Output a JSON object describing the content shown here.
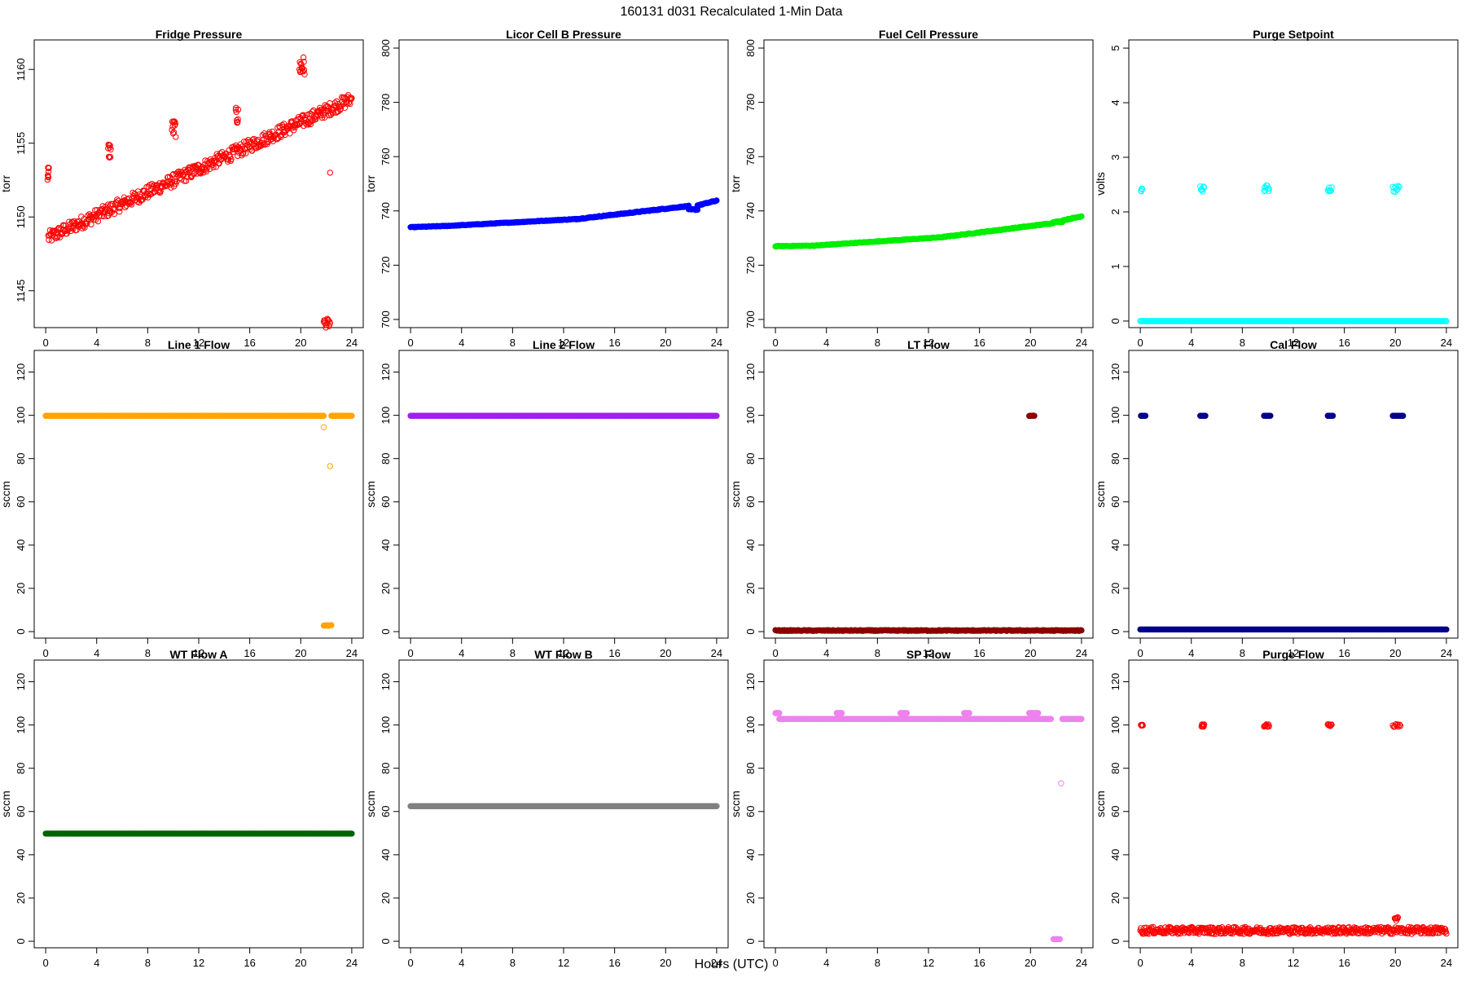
{
  "page_title": "160131   d031   Recalculated 1-Min Data",
  "xlabel": "Hours (UTC)",
  "chart_data": [
    {
      "type": "scatter",
      "title": "Fridge Pressure",
      "ylabel": "torr",
      "color": "#ff0000",
      "marker": "circle-open",
      "xlim": [
        0,
        24
      ],
      "ylim": [
        1142.5,
        1162
      ],
      "xticks": [
        0,
        4,
        8,
        12,
        16,
        20,
        24
      ],
      "yticks": [
        1145,
        1150,
        1155,
        1160
      ],
      "segments": [
        {
          "x": [
            0.2,
            24
          ],
          "y": [
            1148.6,
            1158
          ],
          "dense": true,
          "noise": 0.45
        },
        {
          "x": [
            0.15,
            0.25
          ],
          "y": [
            1153.0,
            1153.0
          ],
          "noise": 0.5,
          "n": 8
        },
        {
          "x": [
            4.9,
            5.1
          ],
          "y": [
            1154.5,
            1154.5
          ],
          "noise": 0.6,
          "n": 8
        },
        {
          "x": [
            9.9,
            10.2
          ],
          "y": [
            1156.0,
            1156.0
          ],
          "noise": 0.6,
          "n": 10
        },
        {
          "x": [
            14.9,
            15.1
          ],
          "y": [
            1156.8,
            1156.8
          ],
          "noise": 0.6,
          "n": 8
        },
        {
          "x": [
            19.9,
            20.3
          ],
          "y": [
            1160.2,
            1160.2
          ],
          "noise": 0.7,
          "n": 14
        },
        {
          "x": [
            21.8,
            22.3
          ],
          "y": [
            1142.8,
            1142.8
          ],
          "noise": 0.3,
          "n": 12
        }
      ],
      "points": [
        {
          "x": 22.3,
          "y": 1153.0
        }
      ]
    },
    {
      "type": "scatter",
      "title": "Licor Cell B Pressure",
      "ylabel": "torr",
      "color": "#0000ff",
      "marker": "circle-filled",
      "xlim": [
        0,
        24
      ],
      "ylim": [
        697,
        803
      ],
      "xticks": [
        0,
        4,
        8,
        12,
        16,
        20,
        24
      ],
      "yticks": [
        700,
        720,
        740,
        760,
        780,
        800
      ],
      "segments": [
        {
          "x": [
            0,
            3
          ],
          "y": [
            734,
            734.5
          ],
          "dense": true,
          "noise": 0.1
        },
        {
          "x": [
            3,
            13
          ],
          "y": [
            734.5,
            737
          ],
          "dense": true,
          "noise": 0.1
        },
        {
          "x": [
            13,
            21.8
          ],
          "y": [
            737,
            741.8
          ],
          "dense": true,
          "noise": 0.15
        },
        {
          "x": [
            21.8,
            22.5
          ],
          "y": [
            740.5,
            740.5
          ],
          "dense": true,
          "noise": 0.2
        },
        {
          "x": [
            22.5,
            24
          ],
          "y": [
            742,
            743.8
          ],
          "dense": true,
          "noise": 0.15
        }
      ]
    },
    {
      "type": "scatter",
      "title": "Fuel Cell Pressure",
      "ylabel": "torr",
      "color": "#00ee00",
      "marker": "circle-filled",
      "xlim": [
        0,
        24
      ],
      "ylim": [
        697,
        803
      ],
      "xticks": [
        0,
        4,
        8,
        12,
        16,
        20,
        24
      ],
      "yticks": [
        700,
        720,
        740,
        760,
        780,
        800
      ],
      "segments": [
        {
          "x": [
            0,
            3
          ],
          "y": [
            727,
            727.2
          ],
          "dense": true,
          "noise": 0.1
        },
        {
          "x": [
            3,
            13
          ],
          "y": [
            727.2,
            730.3
          ],
          "dense": true,
          "noise": 0.1
        },
        {
          "x": [
            13,
            21.8
          ],
          "y": [
            730.3,
            735.5
          ],
          "dense": true,
          "noise": 0.15
        },
        {
          "x": [
            21.8,
            22.5
          ],
          "y": [
            736,
            736
          ],
          "dense": true,
          "noise": 0.2
        },
        {
          "x": [
            22.5,
            24
          ],
          "y": [
            736.5,
            738
          ],
          "dense": true,
          "noise": 0.15
        }
      ]
    },
    {
      "type": "scatter",
      "title": "Purge Setpoint",
      "ylabel": "volts",
      "color": "#00ffff",
      "marker": "circle-open",
      "xlim": [
        0,
        24
      ],
      "ylim": [
        -0.12,
        5.15
      ],
      "xticks": [
        0,
        4,
        8,
        12,
        16,
        20,
        24
      ],
      "yticks": [
        0,
        1,
        2,
        3,
        4,
        5
      ],
      "segments": [
        {
          "x": [
            0,
            24
          ],
          "y": [
            0,
            0
          ],
          "dense": true,
          "noise": 0
        },
        {
          "x": [
            0.05,
            0.15
          ],
          "y": [
            2.4,
            2.4
          ],
          "noise": 0.03,
          "n": 4
        },
        {
          "x": [
            4.7,
            5.0
          ],
          "y": [
            2.42,
            2.42
          ],
          "noise": 0.05,
          "n": 6
        },
        {
          "x": [
            9.7,
            10.1
          ],
          "y": [
            2.43,
            2.43
          ],
          "noise": 0.06,
          "n": 8
        },
        {
          "x": [
            14.7,
            15.0
          ],
          "y": [
            2.42,
            2.42
          ],
          "noise": 0.05,
          "n": 6
        },
        {
          "x": [
            19.8,
            20.3
          ],
          "y": [
            2.42,
            2.42
          ],
          "noise": 0.06,
          "n": 8
        }
      ]
    },
    {
      "type": "scatter",
      "title": "Line 1 Flow",
      "ylabel": "sccm",
      "color": "#ffa500",
      "marker": "circle-filled",
      "xlim": [
        0,
        24
      ],
      "ylim": [
        -3,
        130
      ],
      "xticks": [
        0,
        4,
        8,
        12,
        16,
        20,
        24
      ],
      "yticks": [
        0,
        20,
        40,
        60,
        80,
        100,
        120
      ],
      "segments": [
        {
          "x": [
            0,
            21.8
          ],
          "y": [
            99.8,
            99.8
          ],
          "dense": true,
          "noise": 0
        },
        {
          "x": [
            21.8,
            22.4
          ],
          "y": [
            2.8,
            2.8
          ],
          "dense": true,
          "noise": 0.2
        },
        {
          "x": [
            22.4,
            24
          ],
          "y": [
            99.8,
            99.8
          ],
          "dense": true,
          "noise": 0
        }
      ],
      "points": [
        {
          "x": 21.8,
          "y": 94.5
        },
        {
          "x": 22.3,
          "y": 76.5
        }
      ]
    },
    {
      "type": "scatter",
      "title": "Line 2 Flow",
      "ylabel": "sccm",
      "color": "#a020f0",
      "marker": "circle-filled",
      "xlim": [
        0,
        24
      ],
      "ylim": [
        -3,
        130
      ],
      "xticks": [
        0,
        4,
        8,
        12,
        16,
        20,
        24
      ],
      "yticks": [
        0,
        20,
        40,
        60,
        80,
        100,
        120
      ],
      "segments": [
        {
          "x": [
            0,
            24
          ],
          "y": [
            99.8,
            99.8
          ],
          "dense": true,
          "noise": 0
        }
      ]
    },
    {
      "type": "scatter",
      "title": "LT Flow",
      "ylabel": "sccm",
      "color": "#8b0000",
      "marker": "circle-filled",
      "xlim": [
        0,
        24
      ],
      "ylim": [
        -3,
        130
      ],
      "xticks": [
        0,
        4,
        8,
        12,
        16,
        20,
        24
      ],
      "yticks": [
        0,
        20,
        40,
        60,
        80,
        100,
        120
      ],
      "segments": [
        {
          "x": [
            0,
            24
          ],
          "y": [
            0.5,
            0.5
          ],
          "dense": true,
          "noise": 0.2
        },
        {
          "x": [
            19.9,
            20.3
          ],
          "y": [
            99.8,
            99.8
          ],
          "dense": true,
          "noise": 0.1
        }
      ]
    },
    {
      "type": "scatter",
      "title": "Cal Flow",
      "ylabel": "sccm",
      "color": "#00008b",
      "marker": "circle-filled",
      "xlim": [
        0,
        24
      ],
      "ylim": [
        -3,
        130
      ],
      "xticks": [
        0,
        4,
        8,
        12,
        16,
        20,
        24
      ],
      "yticks": [
        0,
        20,
        40,
        60,
        80,
        100,
        120
      ],
      "segments": [
        {
          "x": [
            0,
            24
          ],
          "y": [
            1,
            1
          ],
          "dense": true,
          "noise": 0
        },
        {
          "x": [
            0.05,
            0.4
          ],
          "y": [
            99.8,
            99.8
          ],
          "dense": true,
          "noise": 0
        },
        {
          "x": [
            4.7,
            5.1
          ],
          "y": [
            99.8,
            99.8
          ],
          "dense": true,
          "noise": 0
        },
        {
          "x": [
            9.7,
            10.2
          ],
          "y": [
            99.8,
            99.8
          ],
          "dense": true,
          "noise": 0
        },
        {
          "x": [
            14.7,
            15.1
          ],
          "y": [
            99.8,
            99.8
          ],
          "dense": true,
          "noise": 0
        },
        {
          "x": [
            19.8,
            20.6
          ],
          "y": [
            99.8,
            99.8
          ],
          "dense": true,
          "noise": 0
        }
      ]
    },
    {
      "type": "scatter",
      "title": "WT Flow A",
      "ylabel": "sccm",
      "color": "#006400",
      "marker": "circle-filled",
      "xlim": [
        0,
        24
      ],
      "ylim": [
        -3,
        130
      ],
      "xticks": [
        0,
        4,
        8,
        12,
        16,
        20,
        24
      ],
      "yticks": [
        0,
        20,
        40,
        60,
        80,
        100,
        120
      ],
      "segments": [
        {
          "x": [
            0,
            24
          ],
          "y": [
            49.8,
            49.8
          ],
          "dense": true,
          "noise": 0
        }
      ]
    },
    {
      "type": "scatter",
      "title": "WT Flow B",
      "ylabel": "sccm",
      "color": "#808080",
      "marker": "circle-filled",
      "xlim": [
        0,
        24
      ],
      "ylim": [
        -3,
        130
      ],
      "xticks": [
        0,
        4,
        8,
        12,
        16,
        20,
        24
      ],
      "yticks": [
        0,
        20,
        40,
        60,
        80,
        100,
        120
      ],
      "segments": [
        {
          "x": [
            0,
            24
          ],
          "y": [
            62.5,
            62.5
          ],
          "dense": true,
          "noise": 0
        }
      ]
    },
    {
      "type": "scatter",
      "title": "SP Flow",
      "ylabel": "sccm",
      "color": "#ee82ee",
      "marker": "circle-filled",
      "xlim": [
        0,
        24
      ],
      "ylim": [
        -3,
        130
      ],
      "xticks": [
        0,
        4,
        8,
        12,
        16,
        20,
        24
      ],
      "yticks": [
        0,
        20,
        40,
        60,
        80,
        100,
        120
      ],
      "segments": [
        {
          "x": [
            0.3,
            21.6
          ],
          "y": [
            102.8,
            102.8
          ],
          "dense": true,
          "noise": 0
        },
        {
          "x": [
            0,
            0.3
          ],
          "y": [
            105.5,
            105.5
          ],
          "dense": true,
          "noise": 0
        },
        {
          "x": [
            4.8,
            5.2
          ],
          "y": [
            105.5,
            105.5
          ],
          "dense": true,
          "noise": 0
        },
        {
          "x": [
            9.8,
            10.3
          ],
          "y": [
            105.5,
            105.5
          ],
          "dense": true,
          "noise": 0
        },
        {
          "x": [
            14.8,
            15.2
          ],
          "y": [
            105.5,
            105.5
          ],
          "dense": true,
          "noise": 0
        },
        {
          "x": [
            19.9,
            20.6
          ],
          "y": [
            105.5,
            105.5
          ],
          "dense": true,
          "noise": 0
        },
        {
          "x": [
            21.8,
            22.3
          ],
          "y": [
            1,
            1
          ],
          "dense": true,
          "noise": 0
        },
        {
          "x": [
            22.5,
            24
          ],
          "y": [
            102.8,
            102.8
          ],
          "dense": true,
          "noise": 0
        }
      ],
      "points": [
        {
          "x": 22.4,
          "y": 73
        }
      ]
    },
    {
      "type": "scatter",
      "title": "Purge Flow",
      "ylabel": "sccm",
      "color": "#ff0000",
      "marker": "circle-open",
      "xlim": [
        0,
        24
      ],
      "ylim": [
        -3,
        130
      ],
      "xticks": [
        0,
        4,
        8,
        12,
        16,
        20,
        24
      ],
      "yticks": [
        0,
        20,
        40,
        60,
        80,
        100,
        120
      ],
      "segments": [
        {
          "x": [
            0,
            24
          ],
          "y": [
            5,
            5
          ],
          "dense": true,
          "noise": 1.6
        },
        {
          "x": [
            19.95,
            20.2
          ],
          "y": [
            10,
            10
          ],
          "noise": 1.5,
          "n": 6
        },
        {
          "x": [
            0.05,
            0.2
          ],
          "y": [
            100,
            100
          ],
          "noise": 0.3,
          "n": 4
        },
        {
          "x": [
            4.8,
            5.0
          ],
          "y": [
            99.8,
            99.8
          ],
          "noise": 0.6,
          "n": 6
        },
        {
          "x": [
            9.7,
            10.1
          ],
          "y": [
            99.8,
            99.8
          ],
          "noise": 0.6,
          "n": 8
        },
        {
          "x": [
            14.7,
            15.0
          ],
          "y": [
            99.8,
            99.8
          ],
          "noise": 0.6,
          "n": 6
        },
        {
          "x": [
            19.8,
            20.4
          ],
          "y": [
            99.8,
            99.8
          ],
          "noise": 0.6,
          "n": 8
        }
      ]
    }
  ]
}
